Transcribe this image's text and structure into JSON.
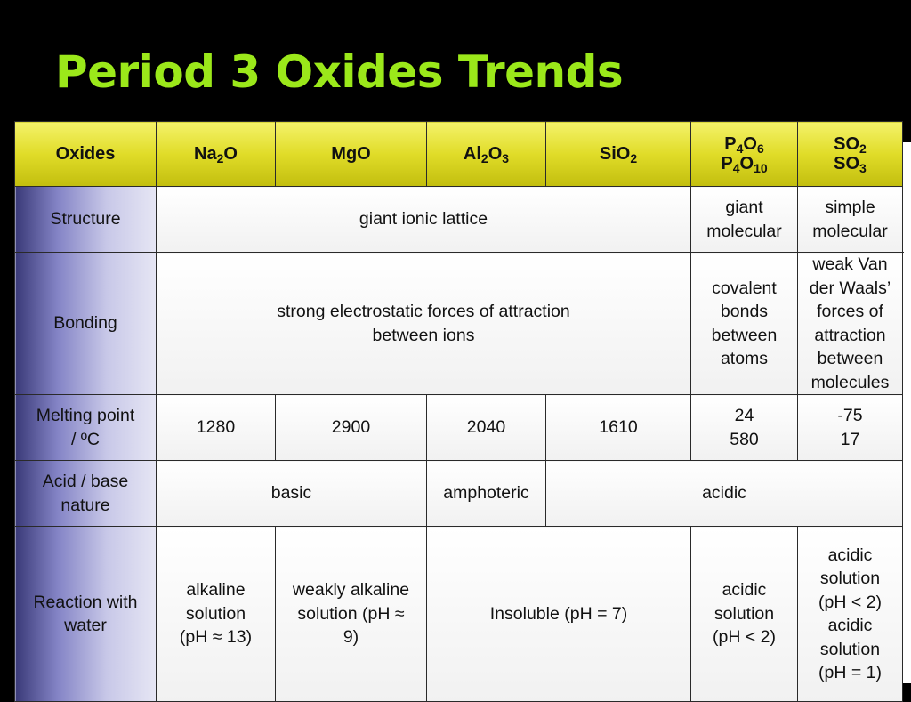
{
  "title": "Period 3 Oxides Trends",
  "header": {
    "label": "Oxides",
    "na2o": {
      "a": "Na",
      "s1": "2",
      "b": "O"
    },
    "mgo": "MgO",
    "al2o3": {
      "a": "Al",
      "s1": "2",
      "b": "O",
      "s2": "3"
    },
    "sio2": {
      "a": "SiO",
      "s1": "2"
    },
    "p": {
      "l1": {
        "a": "P",
        "s1": "4",
        "b": "O",
        "s2": "6"
      },
      "l2": {
        "a": "P",
        "s1": "4",
        "b": "O",
        "s2": "10"
      }
    },
    "s": {
      "l1": {
        "a": "SO",
        "s1": "2"
      },
      "l2": {
        "a": "SO",
        "s1": "3"
      }
    }
  },
  "structure": {
    "label": "Structure",
    "ionic": "giant ionic lattice",
    "giant_l1": "giant",
    "giant_l2": "molecular",
    "simple": "simple molecular"
  },
  "bonding": {
    "label": "Bonding",
    "ionic_l1": "strong electrostatic forces of attraction",
    "ionic_l2": "between ions",
    "cov_l1": "covalent",
    "cov_l2": "bonds",
    "cov_l3": "between",
    "cov_l4": "atoms",
    "vdw_l1": "weak Van der Waals’",
    "vdw_l2": "forces of attraction",
    "vdw_l3": "between molecules"
  },
  "melting": {
    "label_l1": "Melting point",
    "label_l2": "/ ºC",
    "na2o": "1280",
    "mgo": "2900",
    "al2o3": "2040",
    "sio2": "1610",
    "p_l1": "24",
    "p_l2": "580",
    "s_l1": "-75",
    "s_l2": "17"
  },
  "acid": {
    "label_l1": "Acid / base",
    "label_l2": "nature",
    "basic": "basic",
    "amphoteric": "amphoteric",
    "acidic": "acidic"
  },
  "water": {
    "label_l1": "Reaction with",
    "label_l2": "water",
    "na_l1": "alkaline",
    "na_l2": "solution",
    "na_l3": "(pH ≈ 13)",
    "mg_l1": "weakly alkaline",
    "mg_l2": "solution (pH ≈",
    "mg_l3": "9)",
    "insol": "Insoluble (pH = 7)",
    "p_l1": "acidic",
    "p_l2": "solution",
    "p_l3": "(pH < 2)",
    "s_l1": "acidic",
    "s_l2": "solution",
    "s_l3": "(pH < 2)",
    "s_l4": "acidic",
    "s_l5": "solution",
    "s_l6": "(pH = 1)"
  }
}
